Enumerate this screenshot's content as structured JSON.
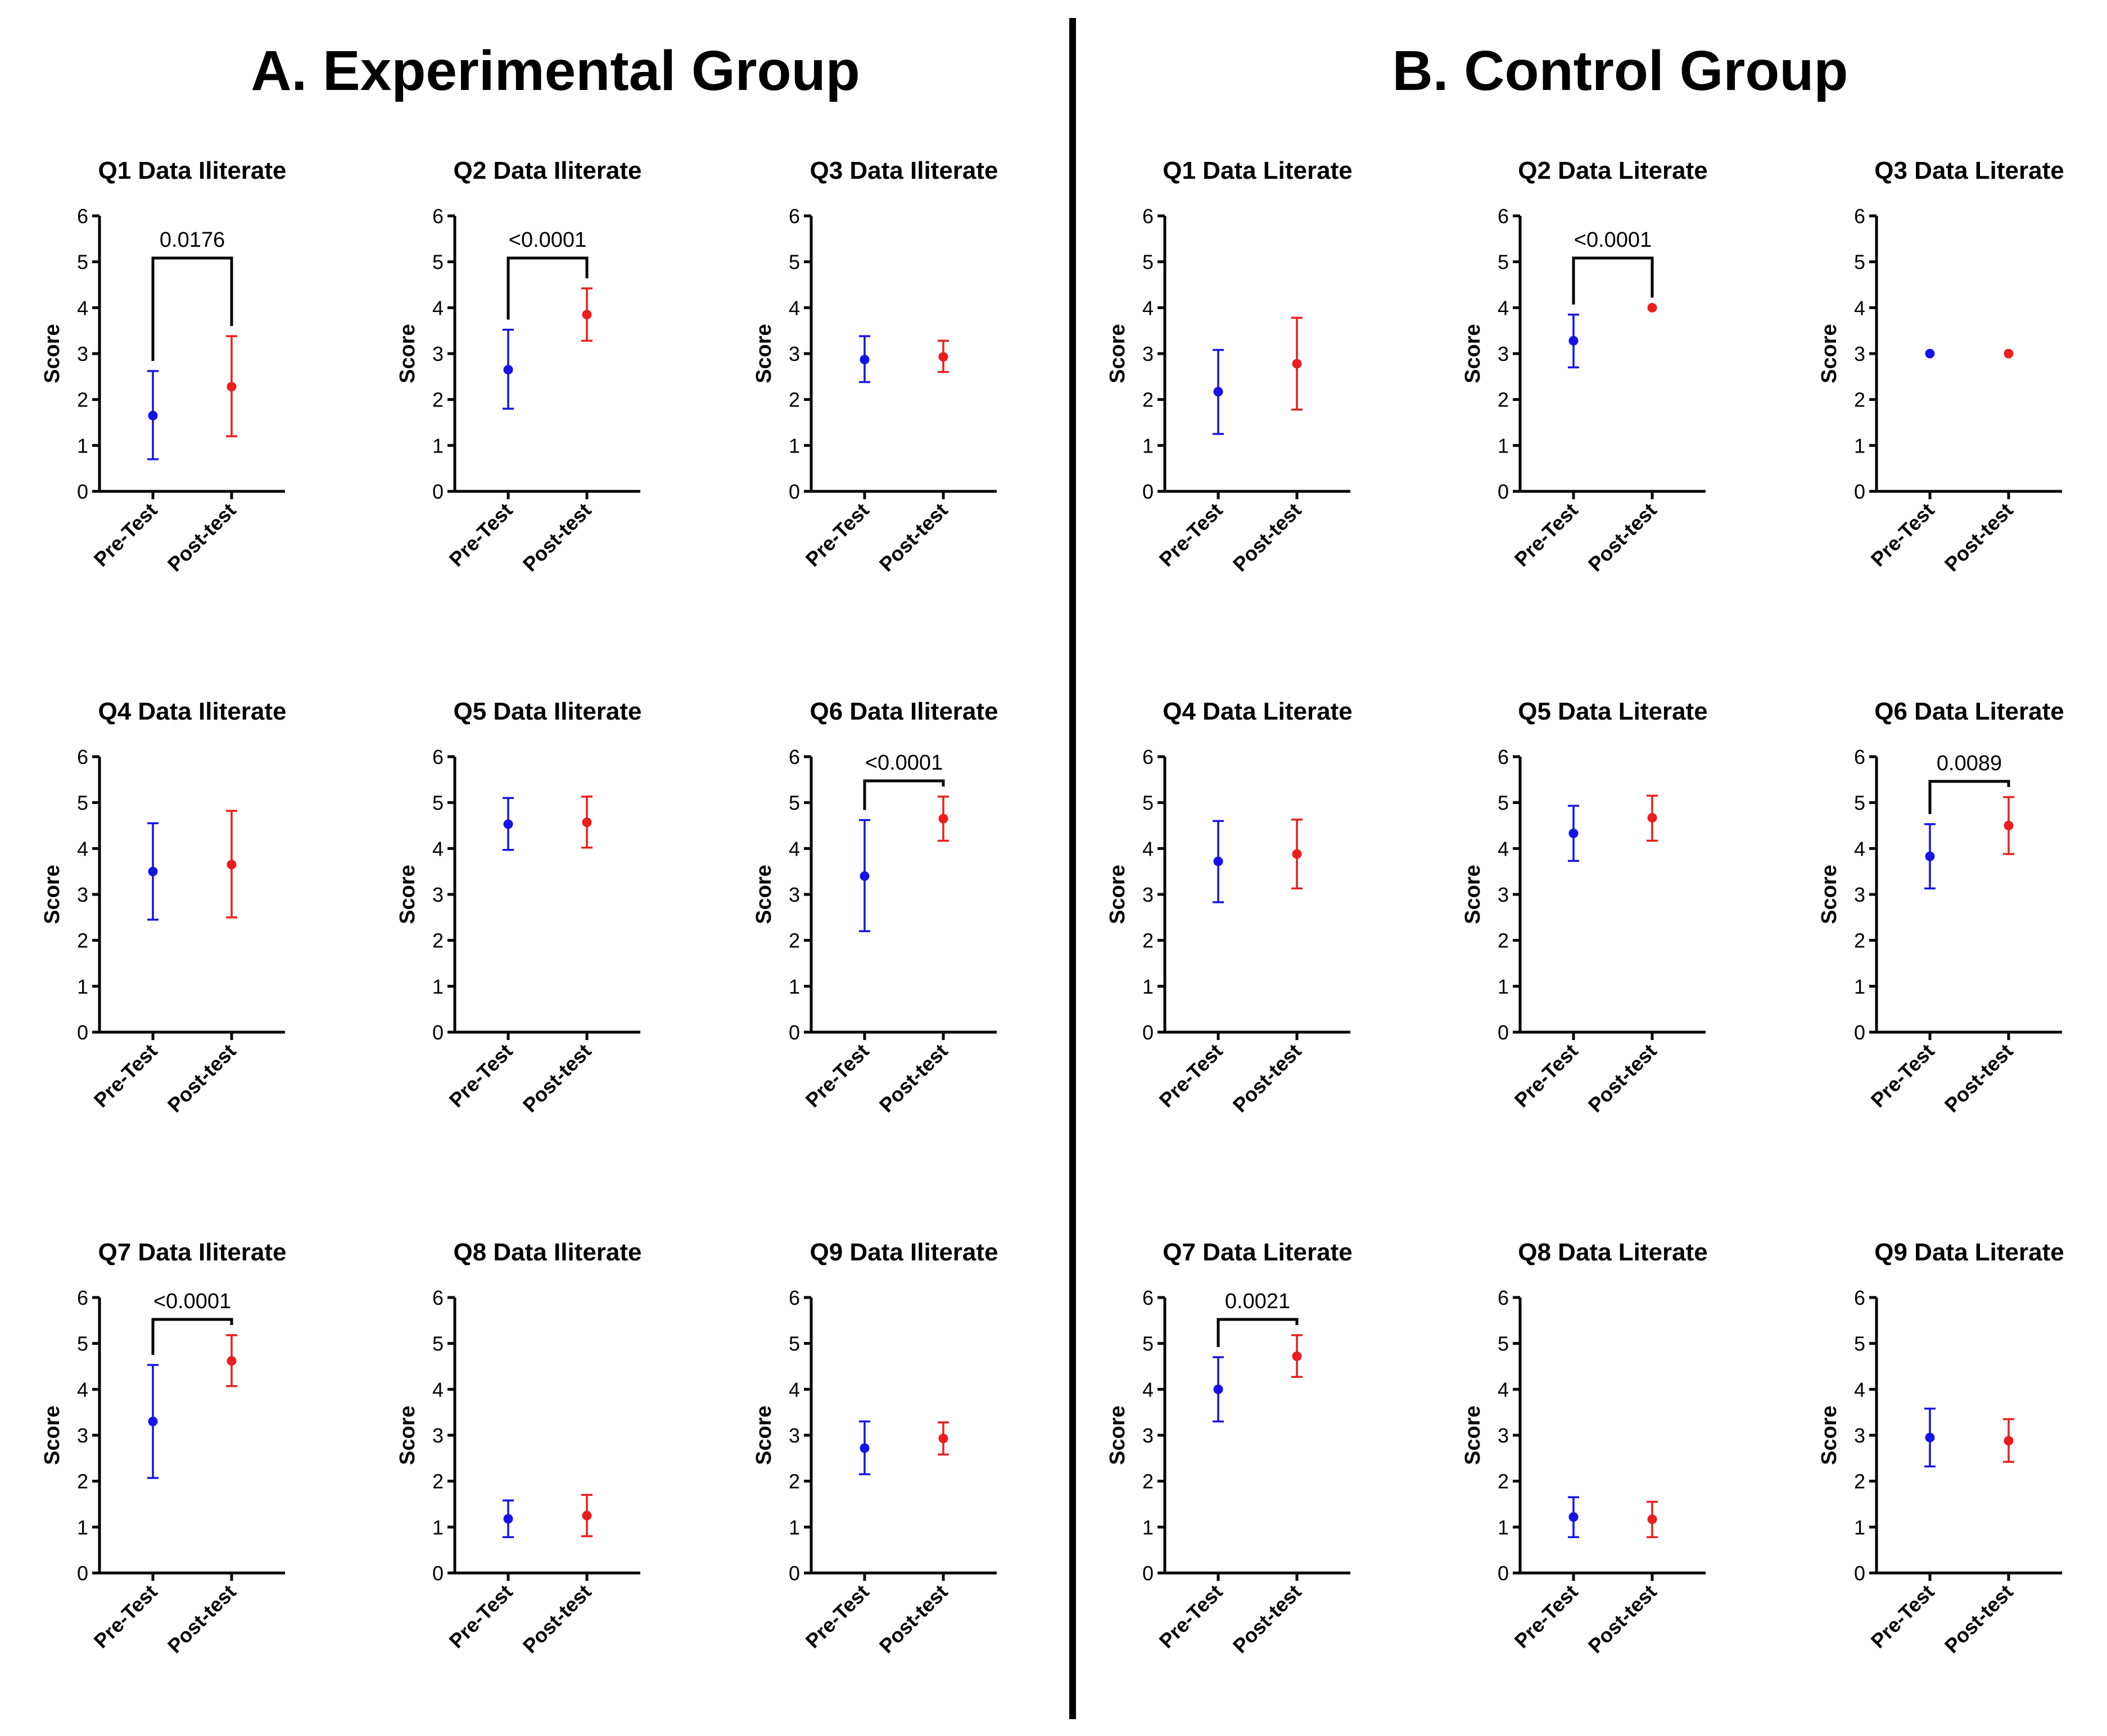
{
  "figure": {
    "groups": [
      {
        "id": "A",
        "title": "A. Experimental Group"
      },
      {
        "id": "B",
        "title": "B. Control Group"
      }
    ],
    "ylabel": "Score",
    "categories": [
      "Pre-Test",
      "Post-test"
    ],
    "colors": {
      "pre": "#1414e6",
      "post": "#ee1c1c",
      "axis": "#000000"
    }
  },
  "chart_data": [
    {
      "type": "scatter",
      "group": "A",
      "title": "Q1 Data Iliterate",
      "ylabel": "Score",
      "categories": [
        "Pre-Test",
        "Post-test"
      ],
      "ylim": [
        0,
        6
      ],
      "yticks": [
        "0",
        "1",
        "2",
        "3",
        "4",
        "5",
        "6"
      ],
      "means": [
        1.65,
        2.28
      ],
      "errors": [
        [
          0.7,
          2.62
        ],
        [
          1.2,
          3.38
        ]
      ],
      "pvalue": "0.0176"
    },
    {
      "type": "scatter",
      "group": "A",
      "title": "Q2 Data Iliterate",
      "ylabel": "Score",
      "categories": [
        "Pre-Test",
        "Post-test"
      ],
      "ylim": [
        0,
        6
      ],
      "yticks": [
        "0",
        "1",
        "2",
        "3",
        "4",
        "5",
        "6"
      ],
      "means": [
        2.65,
        3.85
      ],
      "errors": [
        [
          1.8,
          3.52
        ],
        [
          3.28,
          4.42
        ]
      ],
      "pvalue": "<0.0001"
    },
    {
      "type": "scatter",
      "group": "A",
      "title": "Q3 Data Iliterate",
      "ylabel": "Score",
      "categories": [
        "Pre-Test",
        "Post-test"
      ],
      "ylim": [
        0,
        6
      ],
      "yticks": [
        "0",
        "1",
        "2",
        "3",
        "4",
        "5",
        "6"
      ],
      "means": [
        2.87,
        2.93
      ],
      "errors": [
        [
          2.38,
          3.38
        ],
        [
          2.6,
          3.28
        ]
      ],
      "pvalue": null
    },
    {
      "type": "scatter",
      "group": "A",
      "title": "Q4 Data Iliterate",
      "ylabel": "Score",
      "categories": [
        "Pre-Test",
        "Post-test"
      ],
      "ylim": [
        0,
        6
      ],
      "yticks": [
        "0",
        "1",
        "2",
        "3",
        "4",
        "5",
        "6"
      ],
      "means": [
        3.5,
        3.65
      ],
      "errors": [
        [
          2.45,
          4.55
        ],
        [
          2.5,
          4.82
        ]
      ],
      "pvalue": null
    },
    {
      "type": "scatter",
      "group": "A",
      "title": "Q5 Data Iliterate",
      "ylabel": "Score",
      "categories": [
        "Pre-Test",
        "Post-test"
      ],
      "ylim": [
        0,
        6
      ],
      "yticks": [
        "0",
        "1",
        "2",
        "3",
        "4",
        "5",
        "6"
      ],
      "means": [
        4.53,
        4.57
      ],
      "errors": [
        [
          3.97,
          5.1
        ],
        [
          4.02,
          5.13
        ]
      ],
      "pvalue": null
    },
    {
      "type": "scatter",
      "group": "A",
      "title": "Q6 Data Iliterate",
      "ylabel": "Score",
      "categories": [
        "Pre-Test",
        "Post-test"
      ],
      "ylim": [
        0,
        6
      ],
      "yticks": [
        "0",
        "1",
        "2",
        "3",
        "4",
        "5",
        "6"
      ],
      "means": [
        3.4,
        4.65
      ],
      "errors": [
        [
          2.2,
          4.62
        ],
        [
          4.17,
          5.13
        ]
      ],
      "pvalue": "<0.0001"
    },
    {
      "type": "scatter",
      "group": "A",
      "title": "Q7 Data Iliterate",
      "ylabel": "Score",
      "categories": [
        "Pre-Test",
        "Post-test"
      ],
      "ylim": [
        0,
        6
      ],
      "yticks": [
        "0",
        "1",
        "2",
        "3",
        "4",
        "5",
        "6"
      ],
      "means": [
        3.3,
        4.62
      ],
      "errors": [
        [
          2.07,
          4.53
        ],
        [
          4.07,
          5.18
        ]
      ],
      "pvalue": "<0.0001"
    },
    {
      "type": "scatter",
      "group": "A",
      "title": "Q8 Data Iliterate",
      "ylabel": "Score",
      "categories": [
        "Pre-Test",
        "Post-test"
      ],
      "ylim": [
        0,
        6
      ],
      "yticks": [
        "0",
        "1",
        "2",
        "3",
        "4",
        "5",
        "6"
      ],
      "means": [
        1.18,
        1.25
      ],
      "errors": [
        [
          0.78,
          1.58
        ],
        [
          0.8,
          1.7
        ]
      ],
      "pvalue": null
    },
    {
      "type": "scatter",
      "group": "A",
      "title": "Q9 Data Iliterate",
      "ylabel": "Score",
      "categories": [
        "Pre-Test",
        "Post-test"
      ],
      "ylim": [
        0,
        6
      ],
      "yticks": [
        "0",
        "1",
        "2",
        "3",
        "4",
        "5",
        "6"
      ],
      "means": [
        2.72,
        2.93
      ],
      "errors": [
        [
          2.15,
          3.3
        ],
        [
          2.58,
          3.28
        ]
      ],
      "pvalue": null
    },
    {
      "type": "scatter",
      "group": "B",
      "title": "Q1 Data Literate",
      "ylabel": "Score",
      "categories": [
        "Pre-Test",
        "Post-test"
      ],
      "ylim": [
        0,
        6
      ],
      "yticks": [
        "0",
        "1",
        "2",
        "3",
        "4",
        "5",
        "6"
      ],
      "means": [
        2.17,
        2.78
      ],
      "errors": [
        [
          1.25,
          3.08
        ],
        [
          1.78,
          3.78
        ]
      ],
      "pvalue": null
    },
    {
      "type": "scatter",
      "group": "B",
      "title": "Q2 Data Literate",
      "ylabel": "Score",
      "categories": [
        "Pre-Test",
        "Post-test"
      ],
      "ylim": [
        0,
        6
      ],
      "yticks": [
        "0",
        "1",
        "2",
        "3",
        "4",
        "5",
        "6"
      ],
      "means": [
        3.28,
        4.0
      ],
      "errors": [
        [
          2.7,
          3.85
        ],
        null
      ],
      "pvalue": "<0.0001"
    },
    {
      "type": "scatter",
      "group": "B",
      "title": "Q3 Data Literate",
      "ylabel": "Score",
      "categories": [
        "Pre-Test",
        "Post-test"
      ],
      "ylim": [
        0,
        6
      ],
      "yticks": [
        "0",
        "1",
        "2",
        "3",
        "4",
        "5",
        "6"
      ],
      "means": [
        3.0,
        3.0
      ],
      "errors": [
        null,
        null
      ],
      "pvalue": null
    },
    {
      "type": "scatter",
      "group": "B",
      "title": "Q4 Data Literate",
      "ylabel": "Score",
      "categories": [
        "Pre-Test",
        "Post-test"
      ],
      "ylim": [
        0,
        6
      ],
      "yticks": [
        "0",
        "1",
        "2",
        "3",
        "4",
        "5",
        "6"
      ],
      "means": [
        3.72,
        3.88
      ],
      "errors": [
        [
          2.83,
          4.6
        ],
        [
          3.13,
          4.63
        ]
      ],
      "pvalue": null
    },
    {
      "type": "scatter",
      "group": "B",
      "title": "Q5 Data Literate",
      "ylabel": "Score",
      "categories": [
        "Pre-Test",
        "Post-test"
      ],
      "ylim": [
        0,
        6
      ],
      "yticks": [
        "0",
        "1",
        "2",
        "3",
        "4",
        "5",
        "6"
      ],
      "means": [
        4.33,
        4.67
      ],
      "errors": [
        [
          3.73,
          4.93
        ],
        [
          4.17,
          5.15
        ]
      ],
      "pvalue": null
    },
    {
      "type": "scatter",
      "group": "B",
      "title": "Q6 Data Literate",
      "ylabel": "Score",
      "categories": [
        "Pre-Test",
        "Post-test"
      ],
      "ylim": [
        0,
        6
      ],
      "yticks": [
        "0",
        "1",
        "2",
        "3",
        "4",
        "5",
        "6"
      ],
      "means": [
        3.83,
        4.5
      ],
      "errors": [
        [
          3.13,
          4.53
        ],
        [
          3.88,
          5.12
        ]
      ],
      "pvalue": "0.0089"
    },
    {
      "type": "scatter",
      "group": "B",
      "title": "Q7 Data Literate",
      "ylabel": "Score",
      "categories": [
        "Pre-Test",
        "Post-test"
      ],
      "ylim": [
        0,
        6
      ],
      "yticks": [
        "0",
        "1",
        "2",
        "3",
        "4",
        "5",
        "6"
      ],
      "means": [
        4.0,
        4.72
      ],
      "errors": [
        [
          3.3,
          4.7
        ],
        [
          4.27,
          5.18
        ]
      ],
      "pvalue": "0.0021"
    },
    {
      "type": "scatter",
      "group": "B",
      "title": "Q8 Data Literate",
      "ylabel": "Score",
      "categories": [
        "Pre-Test",
        "Post-test"
      ],
      "ylim": [
        0,
        6
      ],
      "yticks": [
        "0",
        "1",
        "2",
        "3",
        "4",
        "5",
        "6"
      ],
      "means": [
        1.22,
        1.17
      ],
      "errors": [
        [
          0.78,
          1.65
        ],
        [
          0.78,
          1.55
        ]
      ],
      "pvalue": null
    },
    {
      "type": "scatter",
      "group": "B",
      "title": "Q9 Data Literate",
      "ylabel": "Score",
      "categories": [
        "Pre-Test",
        "Post-test"
      ],
      "ylim": [
        0,
        6
      ],
      "yticks": [
        "0",
        "1",
        "2",
        "3",
        "4",
        "5",
        "6"
      ],
      "means": [
        2.95,
        2.88
      ],
      "errors": [
        [
          2.32,
          3.58
        ],
        [
          2.42,
          3.35
        ]
      ],
      "pvalue": null
    }
  ]
}
